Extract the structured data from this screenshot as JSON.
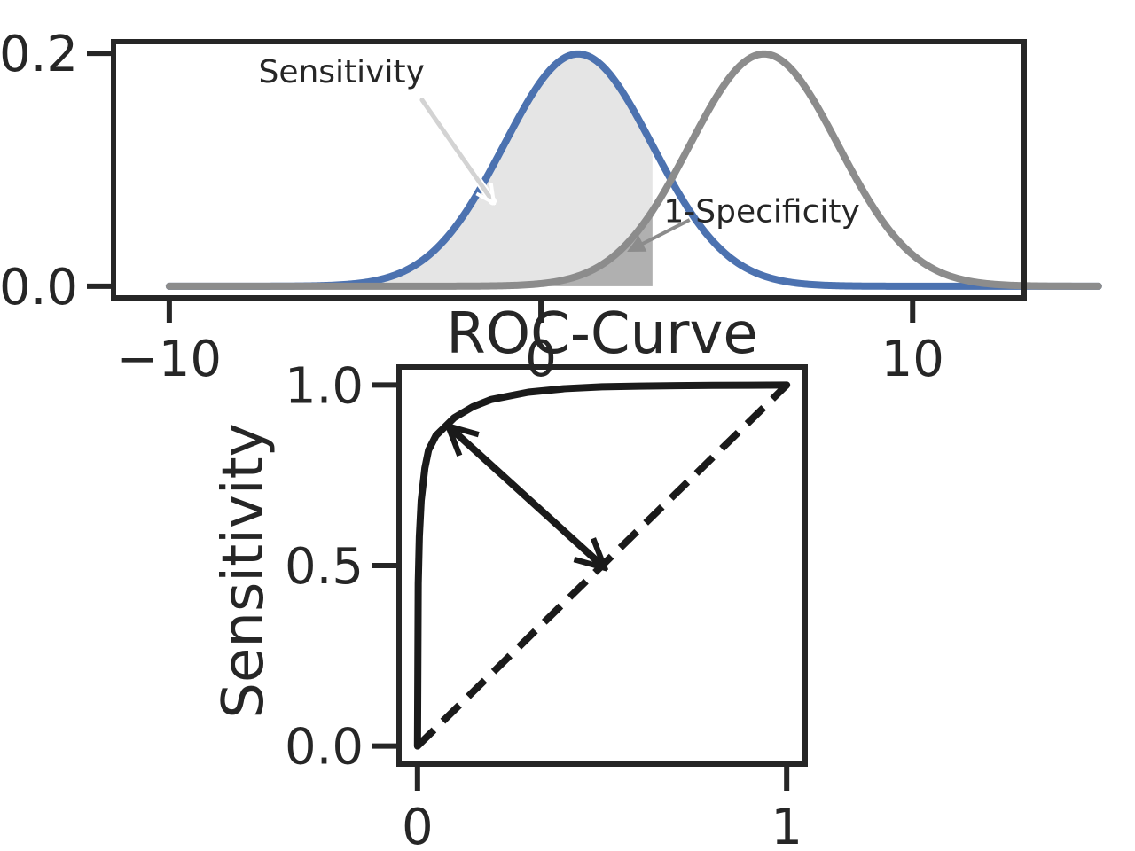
{
  "chart_data": [
    {
      "type": "line",
      "title": "",
      "xlabel": "",
      "ylabel": "",
      "xlim": [
        -11.5,
        13
      ],
      "ylim": [
        -0.01,
        0.21
      ],
      "x_ticks": [
        -10,
        0,
        10
      ],
      "x_tick_labels": [
        "−10",
        "0",
        "10"
      ],
      "y_ticks": [
        0.0,
        0.2
      ],
      "y_tick_labels": [
        "0.0",
        "0.2"
      ],
      "grid": false,
      "series": [
        {
          "mean": 1.0,
          "std": 2.0,
          "x_range": [
            -10,
            15
          ],
          "color": "#4c72b0"
        },
        {
          "mean": 6.0,
          "std": 2.0,
          "x_range": [
            -10,
            15
          ],
          "color": "#8c8c8c"
        }
      ],
      "threshold": 3.0,
      "fills": [
        {
          "series_index": 0,
          "from": -10,
          "to": 3.0,
          "color": "#e5e5e5"
        },
        {
          "series_index": 1,
          "from": -10,
          "to": 3.0,
          "color": "#b0b0b0"
        }
      ],
      "annotations": [
        {
          "text": "Sensitivity",
          "x": -7.6,
          "y": 0.175,
          "arrow_from": [
            -3.2,
            0.16
          ],
          "arrow_to": [
            -1.3,
            0.073
          ],
          "arrow_color": "#d3d3d3"
        },
        {
          "text": "1-Specificity",
          "x": 3.3,
          "y": 0.055,
          "arrow_from": [
            4.0,
            0.057
          ],
          "arrow_to": [
            2.4,
            0.031
          ],
          "arrow_color": "#8c8c8c"
        }
      ]
    },
    {
      "type": "line",
      "title": "ROC-Curve",
      "xlabel": "",
      "ylabel": "Sensitivity",
      "xlim": [
        -0.05,
        1.05
      ],
      "ylim": [
        -0.05,
        1.05
      ],
      "x_ticks": [
        0,
        1
      ],
      "x_tick_labels": [
        "0",
        "1"
      ],
      "y_ticks": [
        0.0,
        0.5,
        1.0
      ],
      "y_tick_labels": [
        "0.0",
        "0.5",
        "1.0"
      ],
      "grid": false,
      "series": [
        {
          "curve": "roc",
          "color": "#1a1a1a",
          "style": "solid",
          "x": [
            0,
            0.002,
            0.005,
            0.01,
            0.02,
            0.03,
            0.05,
            0.07,
            0.1,
            0.15,
            0.2,
            0.3,
            0.4,
            0.5,
            0.6,
            0.7,
            0.8,
            0.9,
            1.0
          ],
          "y": [
            0,
            0.45,
            0.58,
            0.68,
            0.77,
            0.82,
            0.86,
            0.88,
            0.91,
            0.94,
            0.96,
            0.98,
            0.99,
            0.995,
            0.997,
            0.998,
            0.999,
            0.9995,
            1.0
          ]
        },
        {
          "curve": "chance",
          "color": "#1a1a1a",
          "style": "dashed",
          "x": [
            0,
            1
          ],
          "y": [
            0,
            1
          ]
        }
      ],
      "annotations": [
        {
          "arrow_from": [
            0.5,
            0.5
          ],
          "arrow_to": [
            0.09,
            0.88
          ],
          "double_headed": true,
          "color": "#1a1a1a"
        }
      ]
    }
  ]
}
